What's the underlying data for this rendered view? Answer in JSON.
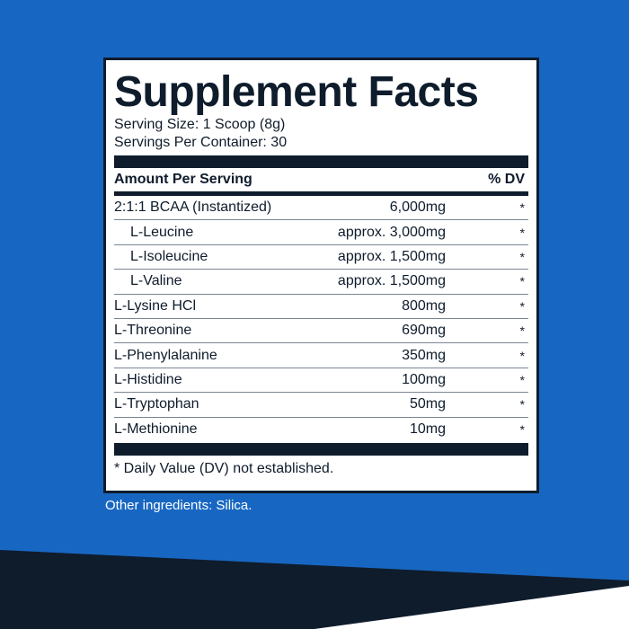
{
  "facts": {
    "title": "Supplement Facts",
    "serving_size": "Serving Size: 1 Scoop (8g)",
    "servings_per_container": "Servings Per Container: 30",
    "header_left": "Amount Per Serving",
    "header_right": "% DV",
    "rows": [
      {
        "name": "2:1:1 BCAA (Instantized)",
        "amount": "6,000mg",
        "dv": "*"
      },
      {
        "name": "L-Leucine",
        "amount": "approx. 3,000mg",
        "dv": "*"
      },
      {
        "name": "L-Isoleucine",
        "amount": "approx. 1,500mg",
        "dv": "*"
      },
      {
        "name": "L-Valine",
        "amount": "approx. 1,500mg",
        "dv": "*"
      },
      {
        "name": "L-Lysine HCl",
        "amount": "800mg",
        "dv": "*"
      },
      {
        "name": "L-Threonine",
        "amount": "690mg",
        "dv": "*"
      },
      {
        "name": "L-Phenylalanine",
        "amount": "350mg",
        "dv": "*"
      },
      {
        "name": "L-Histidine",
        "amount": "100mg",
        "dv": "*"
      },
      {
        "name": "L-Tryptophan",
        "amount": "50mg",
        "dv": "*"
      },
      {
        "name": "L-Methionine",
        "amount": "10mg",
        "dv": "*"
      }
    ],
    "footnote": "* Daily Value (DV) not established."
  },
  "other_ingredients": "Other ingredients: Silica.",
  "colors": {
    "background_blue": "#1767c2",
    "navy": "#0f1c2c",
    "white": "#ffffff"
  }
}
